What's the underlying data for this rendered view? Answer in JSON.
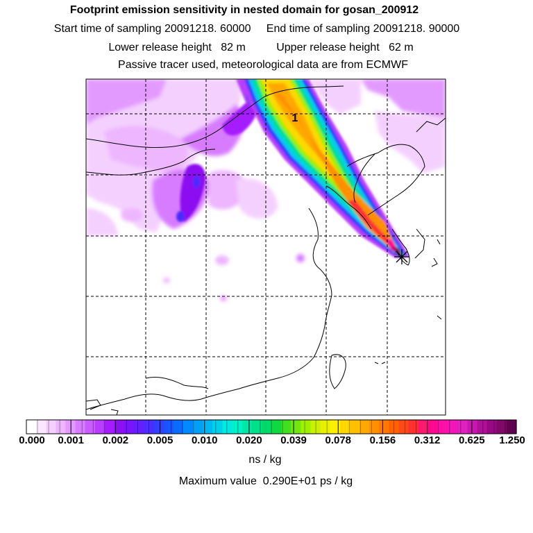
{
  "header": {
    "title": "Footprint emission sensitivity in nested domain for gosan_200912",
    "sampling_line": "Start time of sampling 20091218. 60000     End time of sampling 20091218. 90000",
    "release_line": "Lower release height   82 m          Upper release height   62 m",
    "tracer_line": "Passive tracer used, meteorological data are from ECMWF"
  },
  "map": {
    "marker_label": "1",
    "frame_color": "#000000",
    "grid_style": "dashed"
  },
  "colorbar": {
    "tick_labels": [
      "0.000",
      "0.001",
      "0.002",
      "0.005",
      "0.010",
      "0.020",
      "0.039",
      "0.078",
      "0.156",
      "0.312",
      "0.625",
      "1.250"
    ],
    "units": "ns / kg",
    "colors": [
      "#ffffff",
      "#fbe8ff",
      "#f4d0ff",
      "#edb6ff",
      "#e39aff",
      "#d77cff",
      "#c95cff",
      "#b93cff",
      "#a41cff",
      "#8c10f0",
      "#7a14ff",
      "#6420ff",
      "#4c2cff",
      "#2f40ff",
      "#1a55ff",
      "#0a6cff",
      "#0088ff",
      "#00a0f8",
      "#00b8f0",
      "#00d0e8",
      "#00e8e0",
      "#00f0c8",
      "#00e8a8",
      "#00e088",
      "#00d868",
      "#10d840",
      "#40e020",
      "#70e810",
      "#a0f000",
      "#c8f000",
      "#e8f000",
      "#fff000",
      "#ffd800",
      "#ffc000",
      "#ffa800",
      "#ff9000",
      "#ff7800",
      "#ff6000",
      "#ff4818",
      "#ff3030",
      "#ff1870",
      "#ff0890",
      "#ff10a8",
      "#f018b8",
      "#e020c0",
      "#c818b0",
      "#b01098",
      "#980880",
      "#800868",
      "#600050"
    ]
  },
  "footer": {
    "maximum": "Maximum value  0.290E+01 ps / kg"
  }
}
